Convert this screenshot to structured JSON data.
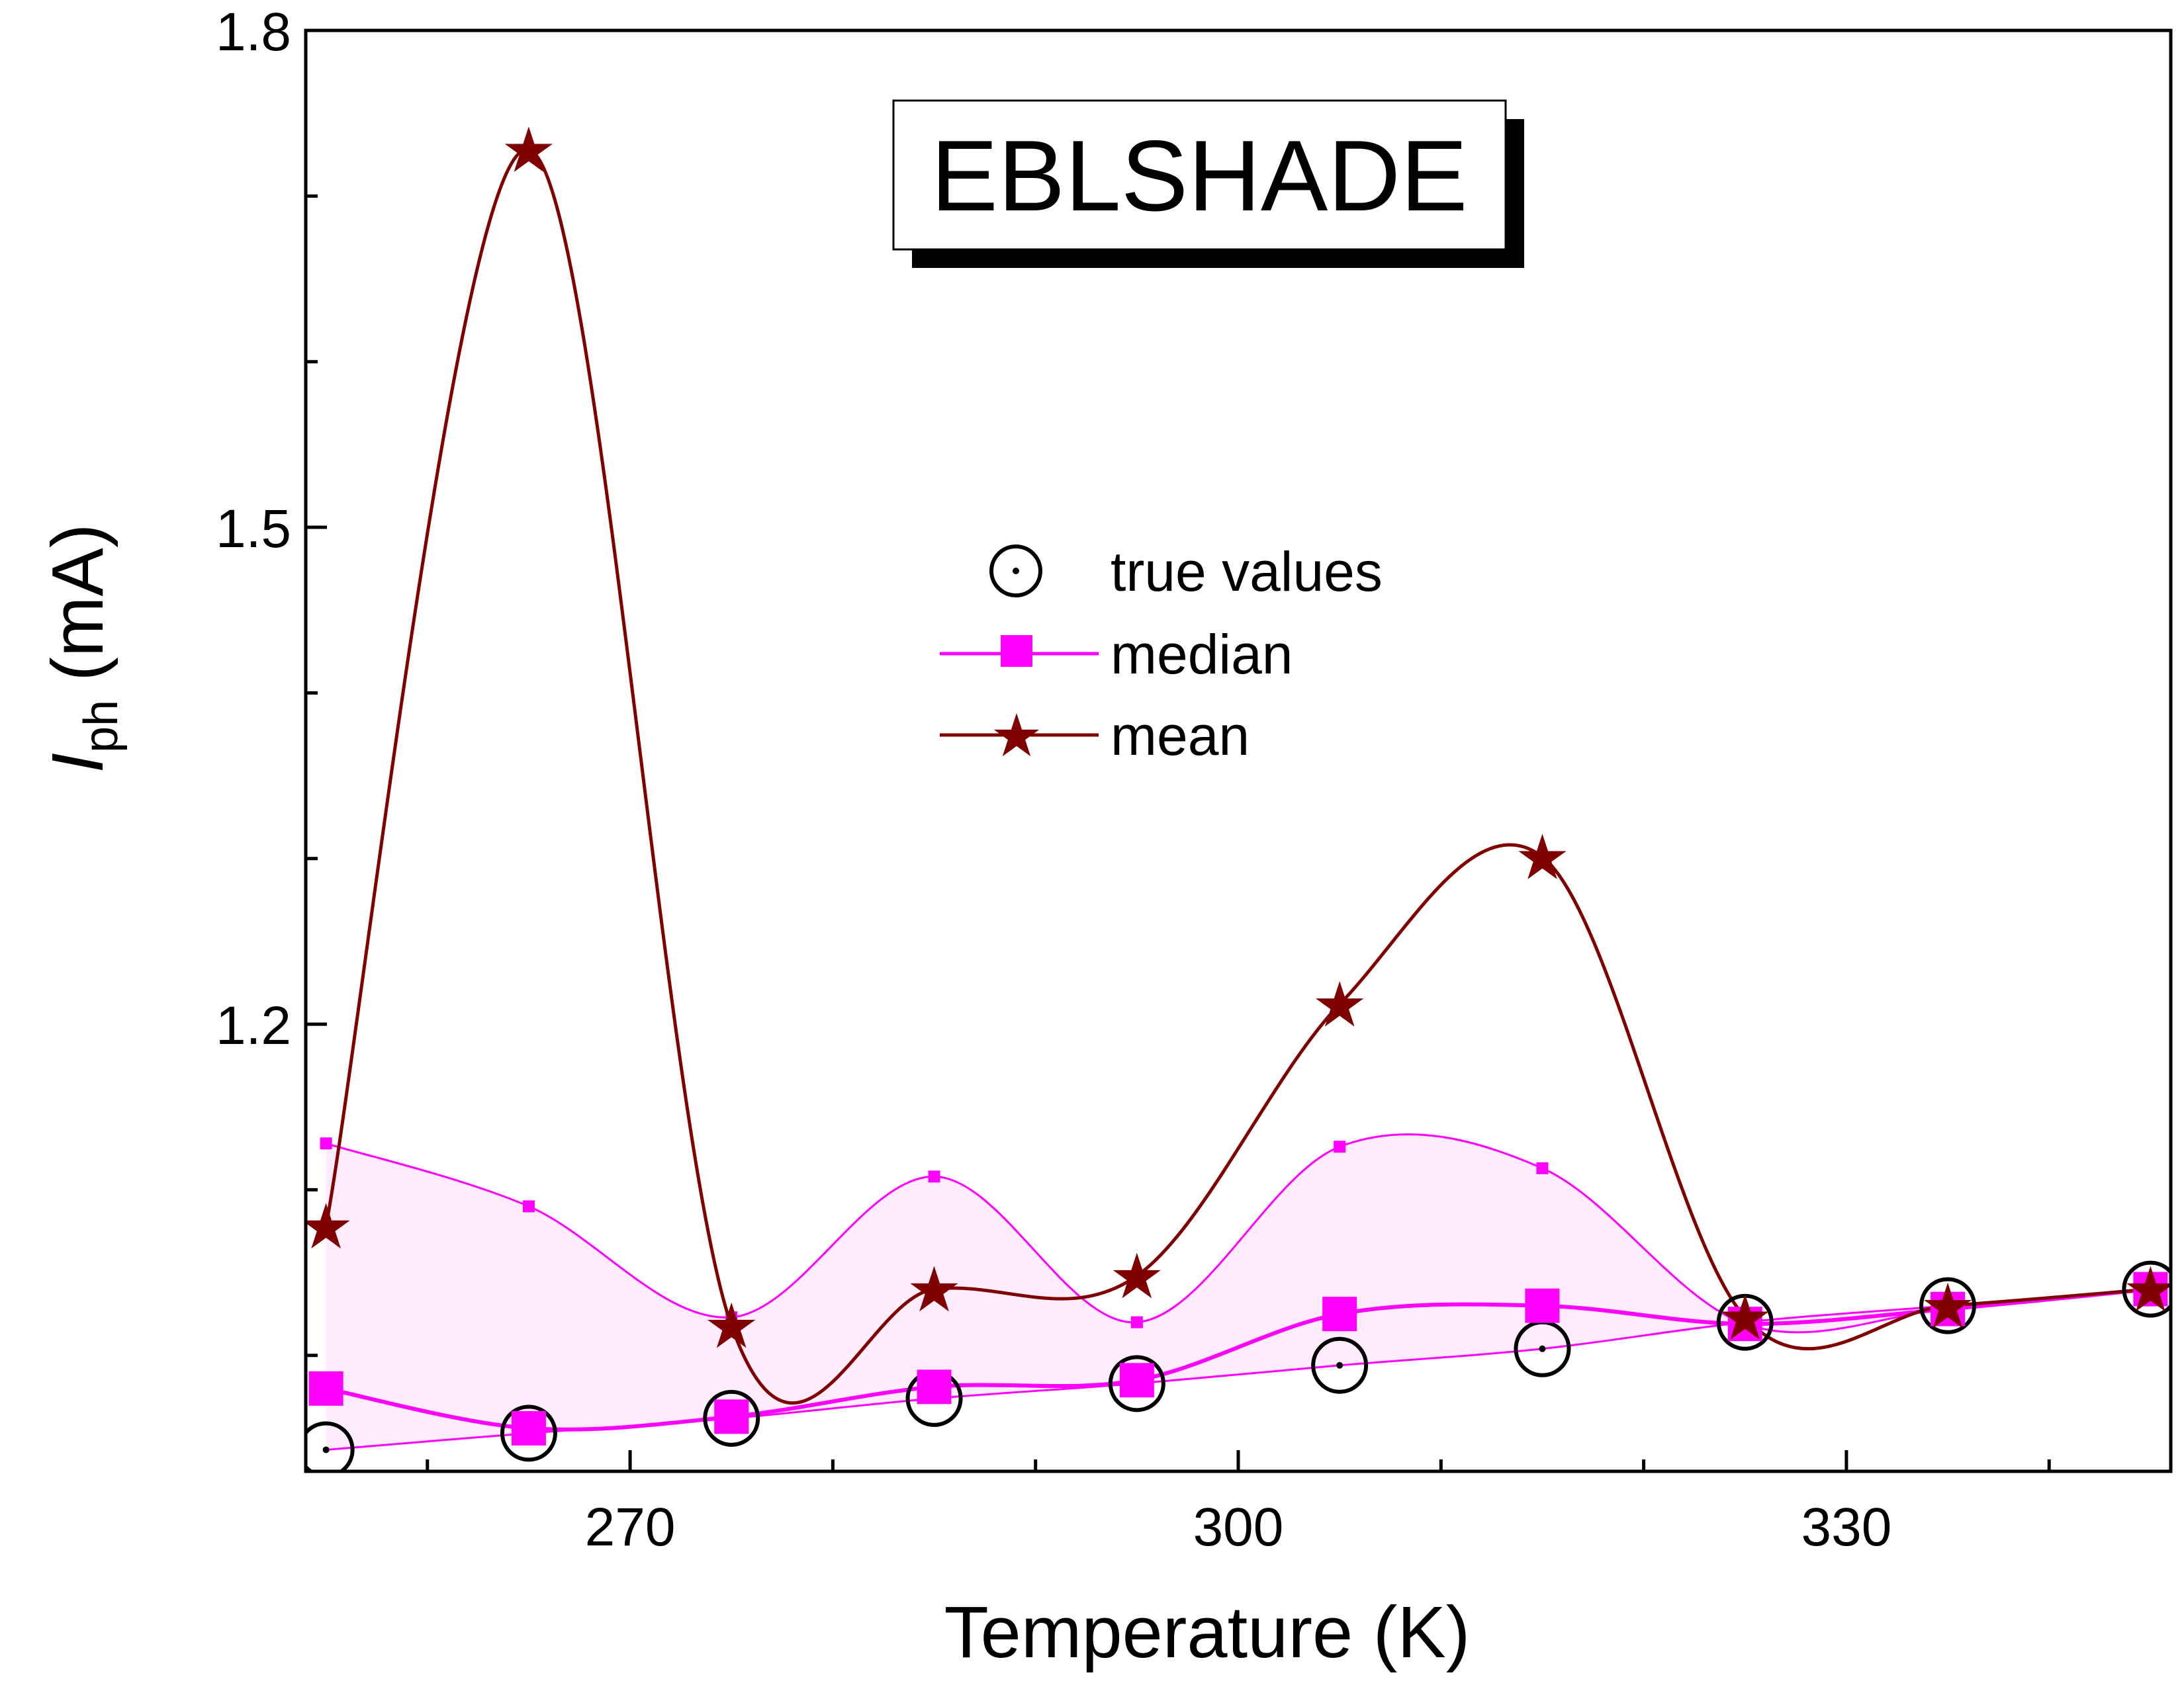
{
  "chart_data": {
    "type": "line",
    "title": "EBLSHADE",
    "xlabel": "Temperature (K)",
    "ylabel": {
      "symbol": "I",
      "subscript": "ph",
      "unit": "(mA)"
    },
    "xlim": [
      254,
      346
    ],
    "ylim": [
      0.93,
      1.8
    ],
    "xticks": [
      270,
      300,
      330
    ],
    "yticks": [
      1.2,
      1.5,
      1.8
    ],
    "ytick_labels": [
      "1.2",
      "1.5",
      "1.8"
    ],
    "x": [
      255,
      265,
      275,
      285,
      295,
      305,
      315,
      325,
      335,
      345
    ],
    "series": [
      {
        "name": "true values",
        "style": "circle-dot",
        "color": "#000000",
        "values": [
          0.943,
          0.953,
          0.962,
          0.974,
          0.983,
          0.994,
          1.004,
          1.02,
          1.03,
          1.04
        ]
      },
      {
        "name": "median",
        "style": "square-line",
        "color": "#ff00ff",
        "values": [
          0.98,
          0.956,
          0.963,
          0.981,
          0.985,
          1.025,
          1.03,
          1.019,
          1.028,
          1.04
        ]
      },
      {
        "name": "mean",
        "style": "star-line",
        "color": "#800000",
        "values": [
          1.078,
          1.728,
          1.018,
          1.04,
          1.048,
          1.212,
          1.301,
          1.023,
          1.03,
          1.04
        ]
      }
    ],
    "band": {
      "color": "#ff00ff",
      "upper": [
        1.128,
        1.09,
        1.023,
        1.108,
        1.02,
        1.126,
        1.113,
        1.019,
        1.028,
        1.04
      ]
    },
    "legend_position": "center"
  }
}
